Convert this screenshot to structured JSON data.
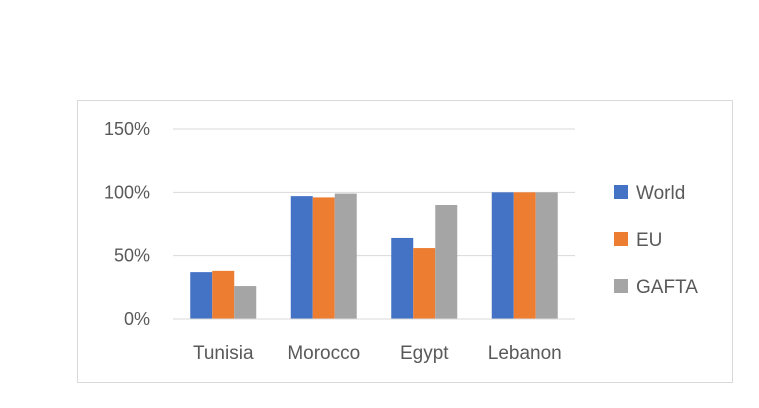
{
  "chart_data": {
    "type": "bar",
    "title": "",
    "xlabel": "",
    "ylabel": "",
    "categories": [
      "Tunisia",
      "Morocco",
      "Egypt",
      "Lebanon"
    ],
    "series": [
      {
        "name": "World",
        "values": [
          0.37,
          0.97,
          0.64,
          1.0
        ],
        "color": "#4472c4"
      },
      {
        "name": "EU",
        "values": [
          0.38,
          0.96,
          0.56,
          1.0
        ],
        "color": "#ed7d31"
      },
      {
        "name": "GAFTA",
        "values": [
          0.26,
          0.99,
          0.9,
          1.0
        ],
        "color": "#a5a5a5"
      }
    ],
    "ylim": [
      0,
      1.5
    ],
    "yticks": [
      0,
      0.5,
      1.0,
      1.5
    ],
    "ytick_labels": [
      "0%",
      "50%",
      "100%",
      "150%"
    ],
    "grid": true,
    "legend_position": "right"
  }
}
